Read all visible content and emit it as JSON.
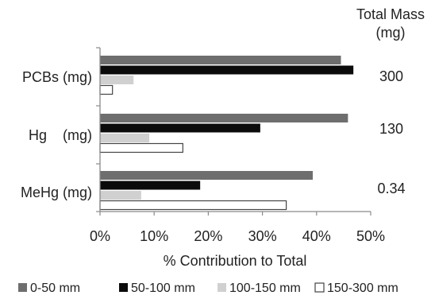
{
  "chart_data": {
    "type": "bar",
    "orientation": "horizontal",
    "categories": [
      "PCBs (mg)",
      "Hg    (mg)",
      "MeHg (mg)"
    ],
    "series": [
      {
        "name": "0-50 mm",
        "values": [
          44.5,
          45.8,
          39.3
        ],
        "color": "#6e6e6e"
      },
      {
        "name": "50-100 mm",
        "values": [
          46.8,
          29.6,
          18.5
        ],
        "color": "#0b0b0b"
      },
      {
        "name": "100-150 mm",
        "values": [
          6.2,
          9.1,
          7.6
        ],
        "color": "#d0d0d0"
      },
      {
        "name": "150-300 mm",
        "values": [
          2.3,
          15.3,
          34.4
        ],
        "color": "#ffffff"
      }
    ],
    "xlabel": "% Contribution to Total",
    "xlim": [
      0,
      50
    ],
    "xticks": [
      "0%",
      "10%",
      "20%",
      "30%",
      "40%",
      "50%"
    ],
    "xtick_values": [
      0,
      10,
      20,
      30,
      40,
      50
    ],
    "grid": false,
    "legend_position": "bottom",
    "side_header": "Total Mass\n(mg)",
    "side_values": [
      "300",
      "130",
      "0.34"
    ]
  }
}
